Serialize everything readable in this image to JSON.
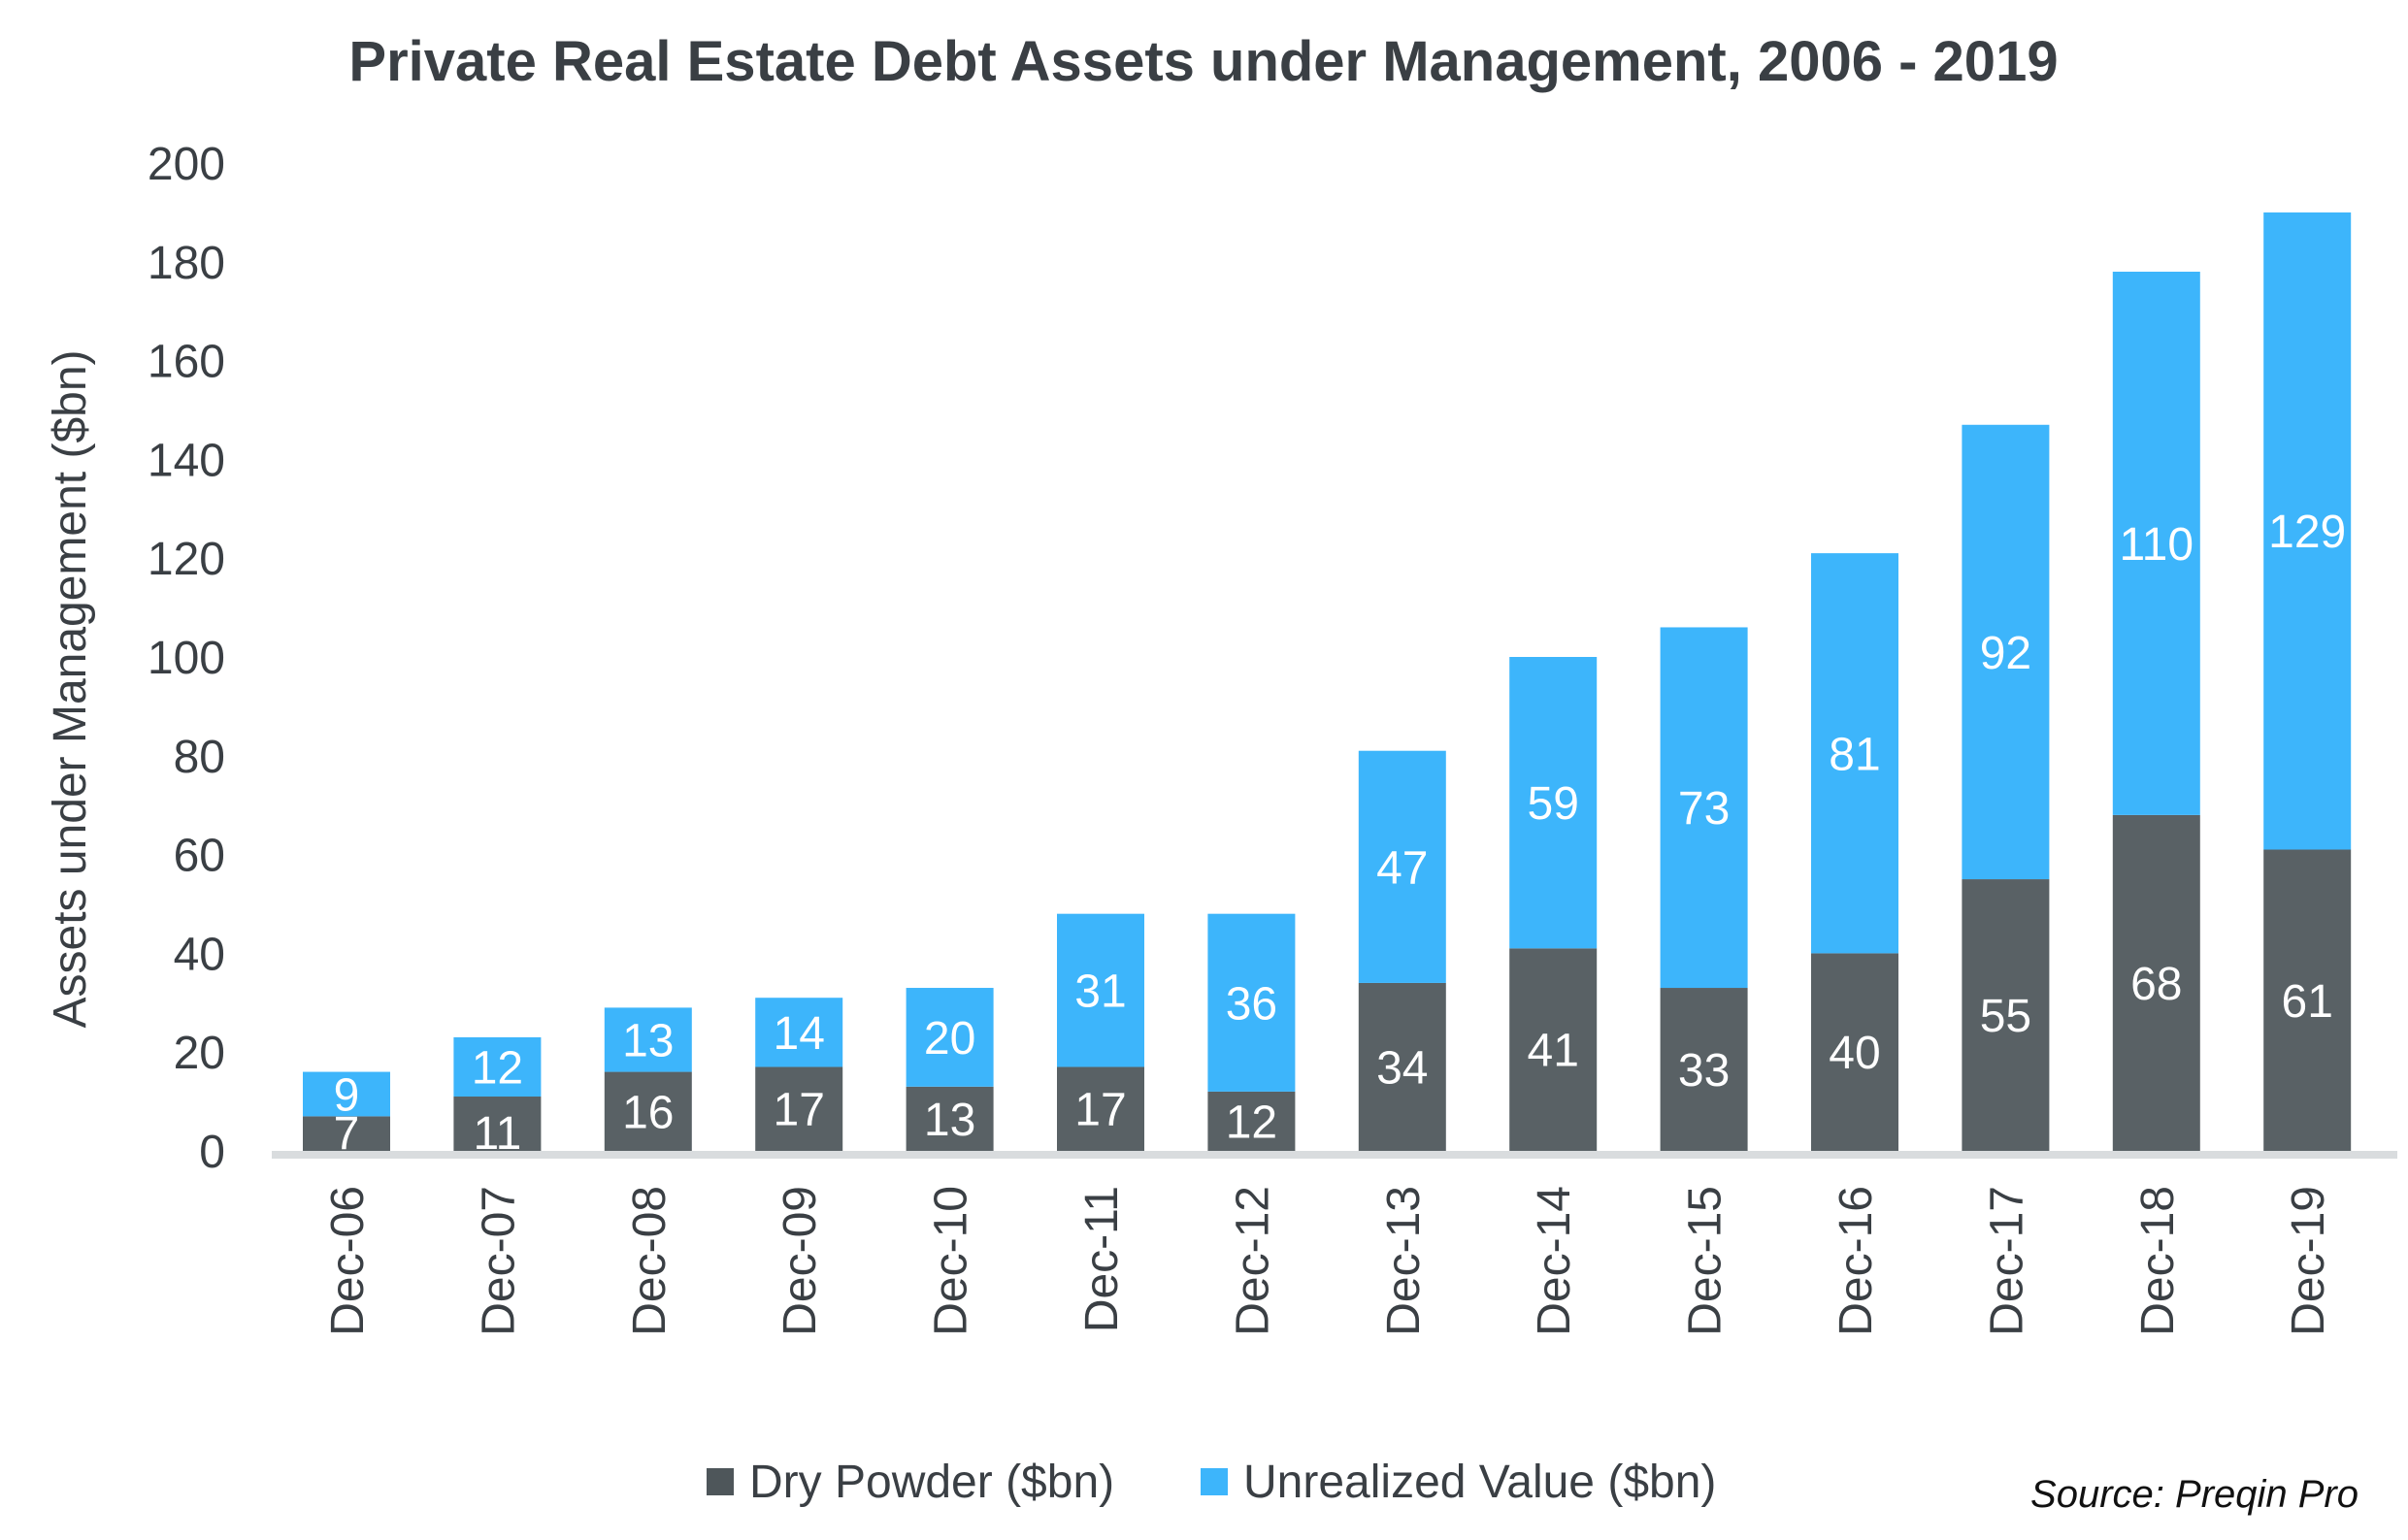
{
  "chart_data": {
    "type": "bar",
    "stacked": true,
    "title": "Private Real Estate Debt Assets under Management, 2006 - 2019",
    "xlabel": "",
    "ylabel": "Assets under Management ($bn)",
    "ylim": [
      0,
      200
    ],
    "yticks": [
      0,
      20,
      40,
      60,
      80,
      100,
      120,
      140,
      160,
      180,
      200
    ],
    "categories": [
      "Dec-06",
      "Dec-07",
      "Dec-08",
      "Dec-09",
      "Dec-10",
      "Dec-11",
      "Dec-12",
      "Dec-13",
      "Dec-14",
      "Dec-15",
      "Dec-16",
      "Dec-17",
      "Dec-18",
      "Dec-19"
    ],
    "series": [
      {
        "name": "Dry Powder ($bn)",
        "color": "#596165",
        "values": [
          7,
          11,
          16,
          17,
          13,
          17,
          12,
          34,
          41,
          33,
          40,
          55,
          68,
          61
        ]
      },
      {
        "name": "Unrealized Value ($bn)",
        "color": "#3db5fb",
        "values": [
          9,
          12,
          13,
          14,
          20,
          31,
          36,
          47,
          59,
          73,
          81,
          92,
          110,
          129
        ]
      }
    ],
    "legend_position": "bottom",
    "grid": false,
    "source": "Source: Preqin Pro",
    "baseline_color": "#d9dcde",
    "text_color": "#3a3f44"
  }
}
